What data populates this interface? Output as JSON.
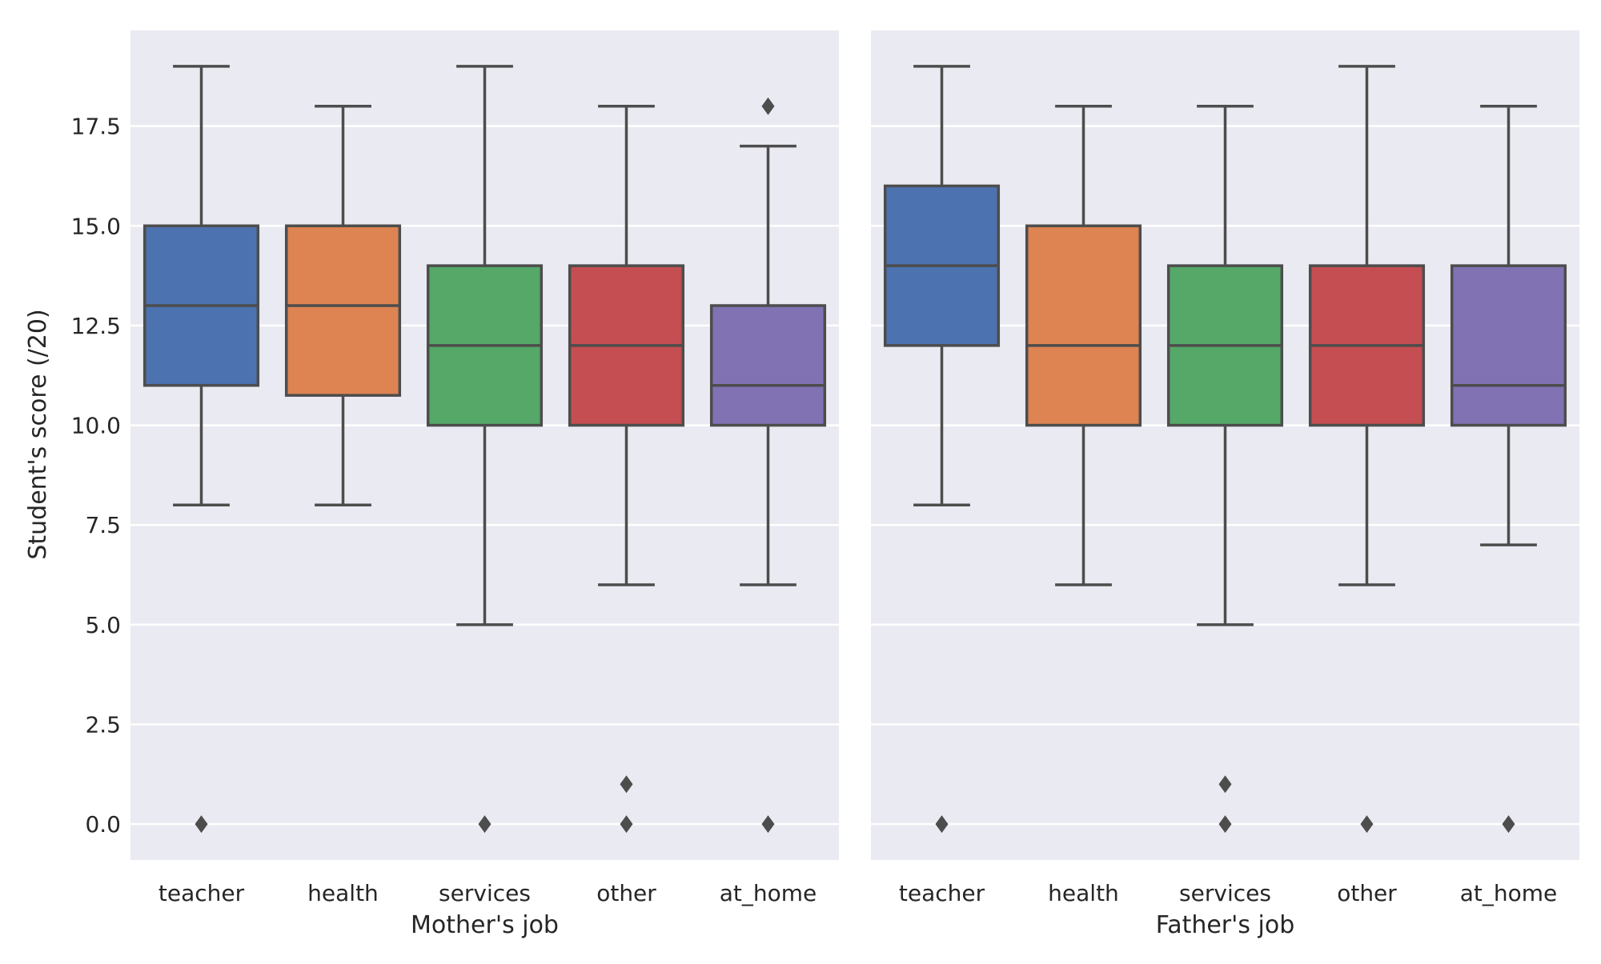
{
  "chart_data": {
    "type": "box",
    "ylabel": "Student's score (/20)",
    "ylim": [
      -0.9,
      19.9
    ],
    "yticks": [
      0.0,
      2.5,
      5.0,
      7.5,
      10.0,
      12.5,
      15.0,
      17.5
    ],
    "ytick_labels": [
      "0.0",
      "2.5",
      "5.0",
      "7.5",
      "10.0",
      "12.5",
      "15.0",
      "17.5"
    ],
    "grid": true,
    "palette": [
      "#4c72b0",
      "#dd8452",
      "#55a868",
      "#c44e52",
      "#8172b3"
    ],
    "panels": [
      {
        "xlabel": "Mother's job",
        "categories": [
          "teacher",
          "health",
          "services",
          "other",
          "at_home"
        ],
        "boxes": [
          {
            "category": "teacher",
            "whisker_low": 8,
            "q1": 11,
            "median": 13,
            "q3": 15,
            "whisker_high": 19,
            "outliers": [
              0
            ]
          },
          {
            "category": "health",
            "whisker_low": 8,
            "q1": 10.75,
            "median": 13,
            "q3": 15,
            "whisker_high": 18,
            "outliers": []
          },
          {
            "category": "services",
            "whisker_low": 5,
            "q1": 10,
            "median": 12,
            "q3": 14,
            "whisker_high": 19,
            "outliers": [
              0
            ]
          },
          {
            "category": "other",
            "whisker_low": 6,
            "q1": 10,
            "median": 12,
            "q3": 14,
            "whisker_high": 18,
            "outliers": [
              0,
              1
            ]
          },
          {
            "category": "at_home",
            "whisker_low": 6,
            "q1": 10,
            "median": 11,
            "q3": 13,
            "whisker_high": 17,
            "outliers": [
              0,
              18
            ]
          }
        ]
      },
      {
        "xlabel": "Father's job",
        "categories": [
          "teacher",
          "health",
          "services",
          "other",
          "at_home"
        ],
        "boxes": [
          {
            "category": "teacher",
            "whisker_low": 8,
            "q1": 12,
            "median": 14,
            "q3": 16,
            "whisker_high": 19,
            "outliers": [
              0
            ]
          },
          {
            "category": "health",
            "whisker_low": 6,
            "q1": 10,
            "median": 12,
            "q3": 15,
            "whisker_high": 18,
            "outliers": []
          },
          {
            "category": "services",
            "whisker_low": 5,
            "q1": 10,
            "median": 12,
            "q3": 14,
            "whisker_high": 18,
            "outliers": [
              0,
              1
            ]
          },
          {
            "category": "other",
            "whisker_low": 6,
            "q1": 10,
            "median": 12,
            "q3": 14,
            "whisker_high": 19,
            "outliers": [
              0
            ]
          },
          {
            "category": "at_home",
            "whisker_low": 7,
            "q1": 10,
            "median": 11,
            "q3": 14,
            "whisker_high": 18,
            "outliers": [
              0
            ]
          }
        ]
      }
    ]
  }
}
